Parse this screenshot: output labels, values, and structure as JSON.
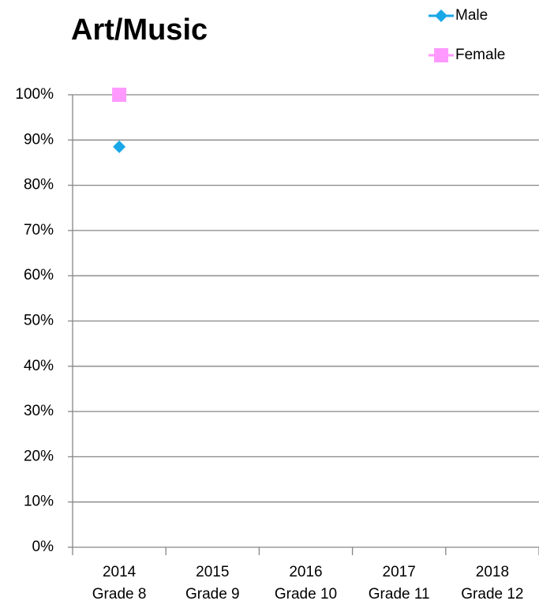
{
  "chart_data": {
    "type": "line",
    "title": "Art/Music",
    "categories": [
      [
        "2014",
        "Grade 8"
      ],
      [
        "2015",
        "Grade 9"
      ],
      [
        "2016",
        "Grade 10"
      ],
      [
        "2017",
        "Grade 11"
      ],
      [
        "2018",
        "Grade 12"
      ]
    ],
    "series": [
      {
        "name": "Male",
        "color": "#1aa7e8",
        "marker": "diamond",
        "values": [
          88.5,
          null,
          null,
          null,
          null
        ]
      },
      {
        "name": "Female",
        "color": "#ff99ff",
        "marker": "square",
        "values": [
          100,
          null,
          null,
          null,
          null
        ]
      }
    ],
    "ylim": [
      0,
      100
    ],
    "yticks": [
      {
        "value": 0,
        "label": "0%"
      },
      {
        "value": 10,
        "label": "10%"
      },
      {
        "value": 20,
        "label": "20%"
      },
      {
        "value": 30,
        "label": "30%"
      },
      {
        "value": 40,
        "label": "40%"
      },
      {
        "value": 50,
        "label": "50%"
      },
      {
        "value": 60,
        "label": "60%"
      },
      {
        "value": 70,
        "label": "70%"
      },
      {
        "value": 80,
        "label": "80%"
      },
      {
        "value": 90,
        "label": "90%"
      },
      {
        "value": 100,
        "label": "100%"
      }
    ],
    "grid": true,
    "legend": "top-right"
  }
}
